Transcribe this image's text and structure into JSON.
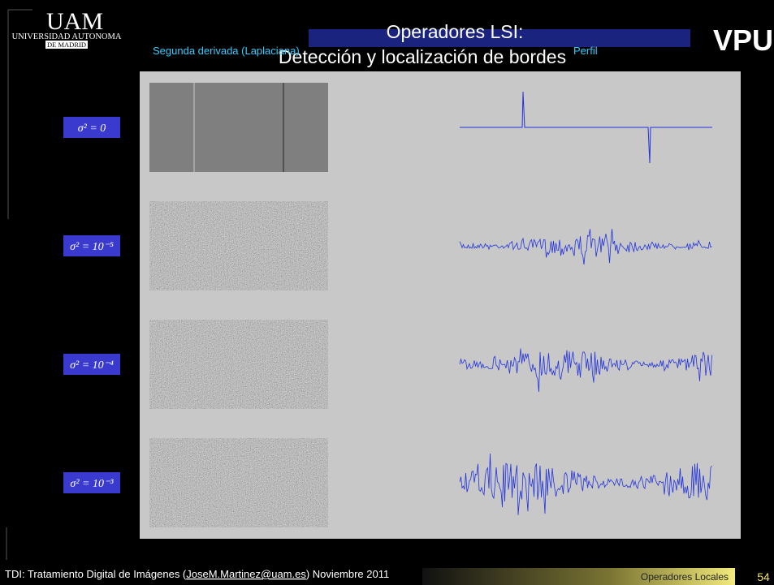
{
  "header": {
    "logo_left": {
      "name": "UAM",
      "line1": "UNIVERSIDAD AUTONOMA",
      "line2": "DE MADRID"
    },
    "title": {
      "line1": "Operadores LSI:",
      "line2": "Detección y localización de bordes"
    },
    "column_labels": {
      "left": "Segunda derivada (Laplaciana)",
      "right": "Perfil"
    },
    "logo_right": "VPU"
  },
  "rows": [
    {
      "label": "σ² = 0"
    },
    {
      "label": "σ² = 10⁻⁵"
    },
    {
      "label": "σ² = 10⁻⁴"
    },
    {
      "label": "σ² = 10⁻³"
    }
  ],
  "footer": {
    "course": "TDI: Tratamiento Digital de Imágenes (",
    "email": "JoseM.Martinez@uam.es",
    "date": ") Noviembre 2011",
    "section": "Operadores Locales",
    "page": "54"
  }
}
